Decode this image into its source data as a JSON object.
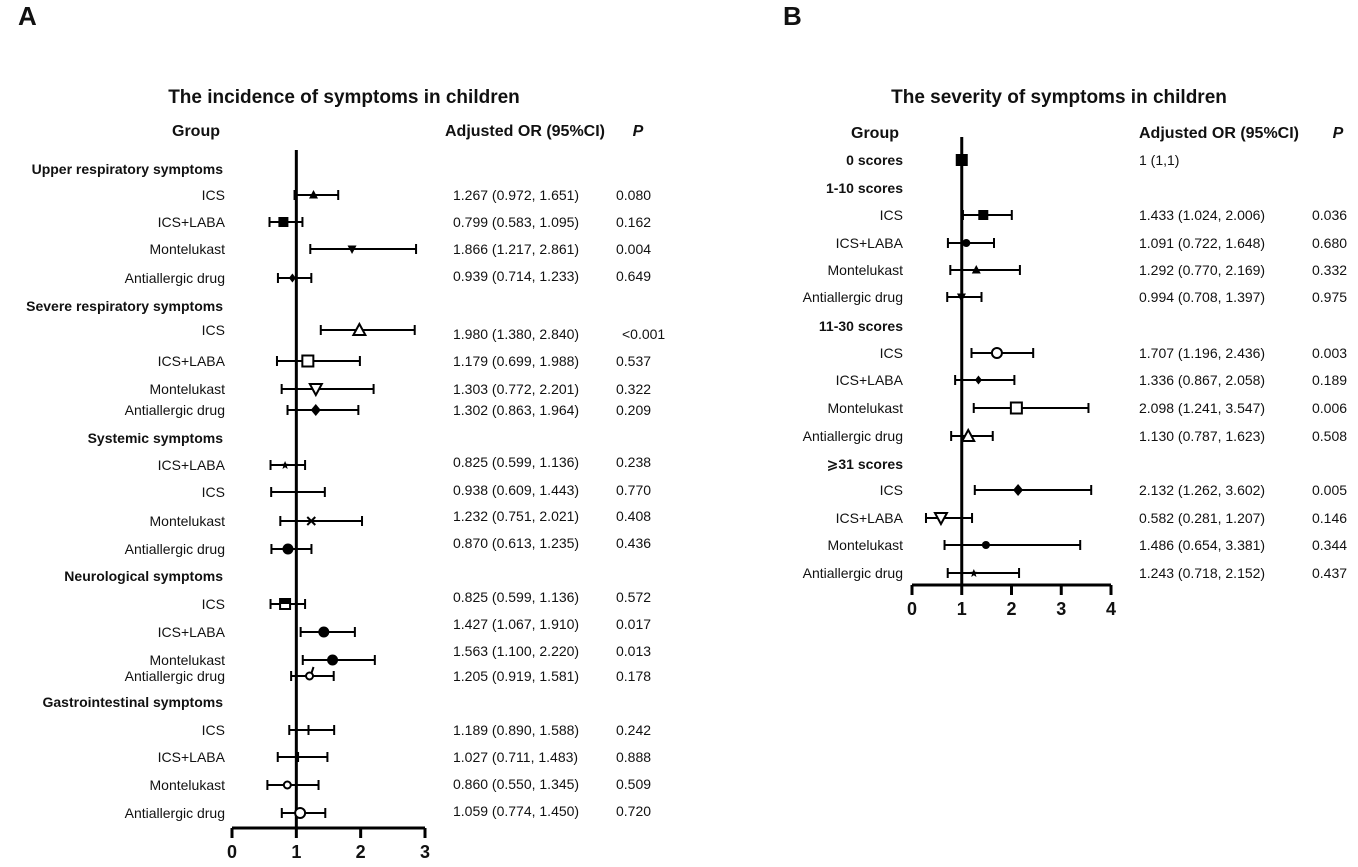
{
  "chart_data": [
    {
      "panel": "A",
      "type": "forest",
      "title": "The incidence of symptoms in children",
      "headers": {
        "group": "Group",
        "or": "Adjusted OR (95%CI)",
        "p": "P"
      },
      "xlim": [
        0,
        3
      ],
      "xticks": [
        "0",
        "1",
        "2",
        "3"
      ],
      "reference_line": 1,
      "rows": [
        {
          "kind": "section",
          "label": "Upper respiratory symptoms"
        },
        {
          "kind": "item",
          "label": "ICS",
          "or": 1.267,
          "lo": 0.972,
          "hi": 1.651,
          "text": "1.267 (0.972, 1.651)",
          "p": "0.080",
          "marker": "triangle-small"
        },
        {
          "kind": "item",
          "label": "ICS+LABA",
          "or": 0.799,
          "lo": 0.583,
          "hi": 1.095,
          "text": "0.799 (0.583, 1.095)",
          "p": "0.162",
          "marker": "square"
        },
        {
          "kind": "item",
          "label": "Montelukast",
          "or": 1.866,
          "lo": 1.217,
          "hi": 2.861,
          "text": "1.866 (1.217, 2.861)",
          "p": "0.004",
          "marker": "triangle-down-small"
        },
        {
          "kind": "item",
          "label": "Antiallergic drug",
          "or": 0.939,
          "lo": 0.714,
          "hi": 1.233,
          "text": "0.939 (0.714, 1.233)",
          "p": "0.649",
          "marker": "diamond-small"
        },
        {
          "kind": "section",
          "label": "Severe respiratory symptoms"
        },
        {
          "kind": "item",
          "label": "ICS",
          "or": 1.98,
          "lo": 1.38,
          "hi": 2.84,
          "text": "1.980 (1.380, 2.840)",
          "p": "<0.001",
          "marker": "triangle-open"
        },
        {
          "kind": "item",
          "label": "ICS+LABA",
          "or": 1.179,
          "lo": 0.699,
          "hi": 1.988,
          "text": "1.179 (0.699, 1.988)",
          "p": "0.537",
          "marker": "square-open"
        },
        {
          "kind": "item",
          "label": "Montelukast",
          "or": 1.303,
          "lo": 0.772,
          "hi": 2.201,
          "text": "1.303 (0.772, 2.201)",
          "p": "0.322",
          "marker": "triangle-down-open"
        },
        {
          "kind": "item",
          "label": "Antiallergic drug",
          "or": 1.302,
          "lo": 0.863,
          "hi": 1.964,
          "text": "1.302 (0.863, 1.964)",
          "p": "0.209",
          "marker": "diamond"
        },
        {
          "kind": "section",
          "label": "Systemic symptoms"
        },
        {
          "kind": "item",
          "label": "ICS+LABA",
          "or": 0.825,
          "lo": 0.599,
          "hi": 1.136,
          "text": "0.825 (0.599, 1.136)",
          "p": "0.238",
          "marker": "star"
        },
        {
          "kind": "item",
          "label": "ICS",
          "or": 0.938,
          "lo": 0.609,
          "hi": 1.443,
          "text": "0.938 (0.609, 1.443)",
          "p": "0.770",
          "marker": "dash"
        },
        {
          "kind": "item",
          "label": "Montelukast",
          "or": 1.232,
          "lo": 0.751,
          "hi": 2.021,
          "text": "1.232 (0.751, 2.021)",
          "p": "0.408",
          "marker": "cross"
        },
        {
          "kind": "item",
          "label": "Antiallergic drug",
          "or": 0.87,
          "lo": 0.613,
          "hi": 1.235,
          "text": "0.870 (0.613, 1.235)",
          "p": "0.436",
          "marker": "circle"
        },
        {
          "kind": "section",
          "label": "Neurological symptoms"
        },
        {
          "kind": "item",
          "label": "ICS",
          "or": 0.825,
          "lo": 0.599,
          "hi": 1.136,
          "text": "0.825 (0.599, 1.136)",
          "p": "0.572",
          "marker": "square-lined"
        },
        {
          "kind": "item",
          "label": "ICS+LABA",
          "or": 1.427,
          "lo": 1.067,
          "hi": 1.91,
          "text": "1.427 (1.067, 1.910)",
          "p": "0.017",
          "marker": "circle"
        },
        {
          "kind": "item",
          "label": "Montelukast",
          "or": 1.563,
          "lo": 1.1,
          "hi": 2.22,
          "text": "1.563 (1.100, 2.220)",
          "p": "0.013",
          "marker": "circle"
        },
        {
          "kind": "item",
          "label": "Antiallergic drug",
          "or": 1.205,
          "lo": 0.919,
          "hi": 1.581,
          "text": "1.205 (0.919, 1.581)",
          "p": "0.178",
          "marker": "circle-tick"
        },
        {
          "kind": "section",
          "label": "Gastrointestinal symptoms"
        },
        {
          "kind": "item",
          "label": "ICS",
          "or": 1.189,
          "lo": 0.89,
          "hi": 1.588,
          "text": "1.189 (0.890, 1.588)",
          "p": "0.242",
          "marker": "tick"
        },
        {
          "kind": "item",
          "label": "ICS+LABA",
          "or": 1.027,
          "lo": 0.711,
          "hi": 1.483,
          "text": "1.027 (0.711, 1.483)",
          "p": "0.888",
          "marker": "tick"
        },
        {
          "kind": "item",
          "label": "Montelukast",
          "or": 0.86,
          "lo": 0.55,
          "hi": 1.345,
          "text": "0.860 (0.550, 1.345)",
          "p": "0.509",
          "marker": "circle-open-small"
        },
        {
          "kind": "item",
          "label": "Antiallergic drug",
          "or": 1.059,
          "lo": 0.774,
          "hi": 1.45,
          "text": "1.059 (0.774, 1.450)",
          "p": "0.720",
          "marker": "circle-open"
        }
      ]
    },
    {
      "panel": "B",
      "type": "forest",
      "title": "The severity of symptoms in children",
      "headers": {
        "group": "Group",
        "or": "Adjusted OR (95%CI)",
        "p": "P"
      },
      "xlim": [
        0,
        4
      ],
      "xticks": [
        "0",
        "1",
        "2",
        "3",
        "4"
      ],
      "reference_line": 1,
      "rows": [
        {
          "kind": "ref",
          "label": "0 scores",
          "or": 1,
          "lo": 1,
          "hi": 1,
          "text": "1 (1,1)",
          "p": "",
          "marker": "square-big"
        },
        {
          "kind": "section",
          "label": "1-10 scores"
        },
        {
          "kind": "item",
          "label": "ICS",
          "or": 1.433,
          "lo": 1.024,
          "hi": 2.006,
          "text": "1.433 (1.024, 2.006)",
          "p": "0.036",
          "marker": "square"
        },
        {
          "kind": "item",
          "label": "ICS+LABA",
          "or": 1.091,
          "lo": 0.722,
          "hi": 1.648,
          "text": "1.091 (0.722, 1.648)",
          "p": "0.680",
          "marker": "circle-small"
        },
        {
          "kind": "item",
          "label": "Montelukast",
          "or": 1.292,
          "lo": 0.77,
          "hi": 2.169,
          "text": "1.292 (0.770, 2.169)",
          "p": "0.332",
          "marker": "triangle-small"
        },
        {
          "kind": "item",
          "label": "Antiallergic drug",
          "or": 0.994,
          "lo": 0.708,
          "hi": 1.397,
          "text": "0.994 (0.708, 1.397)",
          "p": "0.975",
          "marker": "triangle-down-small"
        },
        {
          "kind": "section",
          "label": "11-30 scores"
        },
        {
          "kind": "item",
          "label": "ICS",
          "or": 1.707,
          "lo": 1.196,
          "hi": 2.436,
          "text": "1.707 (1.196, 2.436)",
          "p": "0.003",
          "marker": "circle-open"
        },
        {
          "kind": "item",
          "label": "ICS+LABA",
          "or": 1.336,
          "lo": 0.867,
          "hi": 2.058,
          "text": "1.336 (0.867, 2.058)",
          "p": "0.189",
          "marker": "diamond-small"
        },
        {
          "kind": "item",
          "label": "Montelukast",
          "or": 2.098,
          "lo": 1.241,
          "hi": 3.547,
          "text": "2.098 (1.241, 3.547)",
          "p": "0.006",
          "marker": "square-open"
        },
        {
          "kind": "item",
          "label": "Antiallergic drug",
          "or": 1.13,
          "lo": 0.787,
          "hi": 1.623,
          "text": "1.130 (0.787, 1.623)",
          "p": "0.508",
          "marker": "triangle-open"
        },
        {
          "kind": "section",
          "label": "⩾31 scores"
        },
        {
          "kind": "item",
          "label": "ICS",
          "or": 2.132,
          "lo": 1.262,
          "hi": 3.602,
          "text": "2.132 (1.262, 3.602)",
          "p": "0.005",
          "marker": "diamond"
        },
        {
          "kind": "item",
          "label": "ICS+LABA",
          "or": 0.582,
          "lo": 0.281,
          "hi": 1.207,
          "text": "0.582 (0.281, 1.207)",
          "p": "0.146",
          "marker": "triangle-down-open"
        },
        {
          "kind": "item",
          "label": "Montelukast",
          "or": 1.486,
          "lo": 0.654,
          "hi": 3.381,
          "text": "1.486 (0.654, 3.381)",
          "p": "0.344",
          "marker": "circle-small"
        },
        {
          "kind": "item",
          "label": "Antiallergic drug",
          "or": 1.243,
          "lo": 0.718,
          "hi": 2.152,
          "text": "1.243 (0.718, 2.152)",
          "p": "0.437",
          "marker": "star"
        }
      ]
    }
  ]
}
